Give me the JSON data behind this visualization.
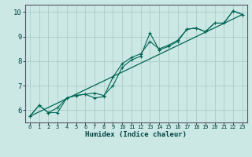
{
  "xlabel": "Humidex (Indice chaleur)",
  "bg_color": "#cce8e4",
  "line_color": "#006655",
  "grid_color": "#aaccc8",
  "xlim": [
    -0.5,
    23.5
  ],
  "ylim": [
    5.5,
    10.3
  ],
  "xticks": [
    0,
    1,
    2,
    3,
    4,
    5,
    6,
    7,
    8,
    9,
    10,
    11,
    12,
    13,
    14,
    15,
    16,
    17,
    18,
    19,
    20,
    21,
    22,
    23
  ],
  "yticks": [
    6,
    7,
    8,
    9,
    10
  ],
  "series1_x": [
    0,
    1,
    2,
    3,
    4,
    5,
    6,
    7,
    8,
    9,
    10,
    11,
    12,
    13,
    14,
    15,
    16,
    17,
    18,
    19,
    20,
    21,
    22,
    23
  ],
  "series1_y": [
    5.75,
    6.2,
    5.9,
    5.9,
    6.5,
    6.6,
    6.65,
    6.7,
    6.6,
    7.0,
    7.75,
    8.05,
    8.2,
    9.15,
    8.45,
    8.6,
    8.8,
    9.3,
    9.35,
    9.2,
    9.55,
    9.55,
    10.05,
    9.9
  ],
  "series2_x": [
    0,
    1,
    2,
    3,
    4,
    5,
    6,
    7,
    8,
    9,
    10,
    11,
    12,
    13,
    14,
    15,
    16,
    17,
    18,
    19,
    20,
    21,
    22,
    23
  ],
  "series2_y": [
    5.75,
    6.2,
    5.9,
    6.1,
    6.5,
    6.6,
    6.65,
    6.5,
    6.55,
    7.35,
    7.9,
    8.15,
    8.3,
    8.8,
    8.5,
    8.65,
    8.85,
    9.3,
    9.35,
    9.2,
    9.55,
    9.55,
    10.05,
    9.9
  ],
  "series3_x": [
    0,
    23
  ],
  "series3_y": [
    5.75,
    9.9
  ]
}
